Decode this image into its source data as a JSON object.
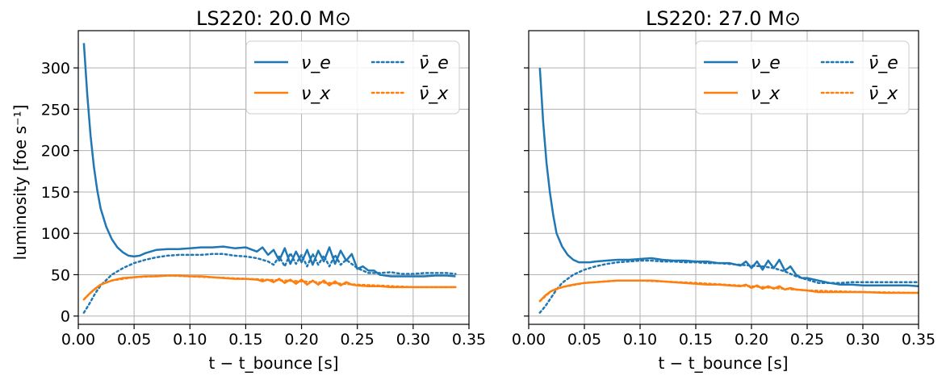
{
  "chart_data": [
    {
      "type": "line",
      "title": "LS220: 20.0 M⊙",
      "xlabel": "t − t_bounce [s]",
      "ylabel": "luminosity [foe s⁻¹]",
      "xlim": [
        0.0,
        0.35
      ],
      "ylim": [
        -10,
        345
      ],
      "xticks": [
        "0.00",
        "0.05",
        "0.10",
        "0.15",
        "0.20",
        "0.25",
        "0.30",
        "0.35"
      ],
      "yticks": [
        "0",
        "50",
        "100",
        "150",
        "200",
        "250",
        "300"
      ],
      "grid": true,
      "legend_position": "upper-right",
      "series": [
        {
          "name": "ν_e",
          "color": "#1f77b4",
          "style": "solid",
          "x": [
            0.005,
            0.008,
            0.011,
            0.014,
            0.017,
            0.02,
            0.025,
            0.03,
            0.035,
            0.04,
            0.045,
            0.05,
            0.055,
            0.06,
            0.07,
            0.08,
            0.09,
            0.1,
            0.11,
            0.12,
            0.13,
            0.14,
            0.15,
            0.16,
            0.165,
            0.17,
            0.175,
            0.18,
            0.185,
            0.19,
            0.195,
            0.2,
            0.205,
            0.21,
            0.215,
            0.22,
            0.225,
            0.23,
            0.235,
            0.24,
            0.245,
            0.25,
            0.255,
            0.26,
            0.265,
            0.27,
            0.28,
            0.29,
            0.3,
            0.31,
            0.32,
            0.33,
            0.338
          ],
          "y": [
            330,
            268,
            218,
            180,
            152,
            130,
            108,
            93,
            83,
            77,
            73,
            72,
            73,
            76,
            80,
            81,
            81,
            82,
            83,
            83,
            84,
            82,
            83,
            78,
            83,
            74,
            80,
            67,
            82,
            63,
            78,
            65,
            80,
            62,
            79,
            66,
            83,
            63,
            79,
            67,
            75,
            57,
            60,
            55,
            55,
            50,
            48,
            48,
            48,
            48,
            49,
            49,
            48
          ]
        },
        {
          "name": "ν̄_e",
          "color": "#1f77b4",
          "style": "dotted",
          "x": [
            0.005,
            0.01,
            0.015,
            0.02,
            0.03,
            0.04,
            0.05,
            0.06,
            0.07,
            0.08,
            0.09,
            0.1,
            0.11,
            0.12,
            0.13,
            0.14,
            0.15,
            0.16,
            0.17,
            0.175,
            0.18,
            0.185,
            0.19,
            0.195,
            0.2,
            0.205,
            0.21,
            0.215,
            0.22,
            0.225,
            0.23,
            0.235,
            0.24,
            0.25,
            0.26,
            0.27,
            0.28,
            0.29,
            0.3,
            0.31,
            0.32,
            0.33,
            0.338
          ],
          "y": [
            4,
            15,
            27,
            37,
            50,
            58,
            64,
            68,
            71,
            73,
            74,
            74,
            74,
            75,
            75,
            73,
            72,
            70,
            66,
            62,
            72,
            60,
            76,
            63,
            74,
            60,
            75,
            62,
            73,
            60,
            74,
            62,
            68,
            58,
            52,
            52,
            53,
            51,
            51,
            52,
            52,
            52,
            51
          ]
        },
        {
          "name": "ν_x",
          "color": "#ff7f0e",
          "style": "solid",
          "x": [
            0.005,
            0.01,
            0.015,
            0.02,
            0.03,
            0.04,
            0.05,
            0.06,
            0.07,
            0.08,
            0.09,
            0.1,
            0.11,
            0.12,
            0.13,
            0.14,
            0.15,
            0.16,
            0.165,
            0.17,
            0.175,
            0.18,
            0.185,
            0.19,
            0.195,
            0.2,
            0.205,
            0.21,
            0.215,
            0.22,
            0.225,
            0.23,
            0.235,
            0.24,
            0.245,
            0.25,
            0.26,
            0.27,
            0.28,
            0.29,
            0.3,
            0.31,
            0.32,
            0.33,
            0.338
          ],
          "y": [
            20,
            27,
            33,
            38,
            43,
            46,
            47,
            48,
            48,
            49,
            49,
            48,
            48,
            47,
            46,
            45,
            45,
            44,
            42,
            44,
            41,
            45,
            40,
            44,
            39,
            44,
            38,
            43,
            38,
            43,
            37,
            42,
            37,
            41,
            38,
            37,
            36,
            36,
            35,
            35,
            35,
            35,
            35,
            35,
            35
          ]
        },
        {
          "name": "ν̄_x",
          "color": "#ff7f0e",
          "style": "dotted",
          "x": [
            0.005,
            0.01,
            0.02,
            0.03,
            0.05,
            0.08,
            0.1,
            0.15,
            0.2,
            0.25,
            0.3,
            0.338
          ],
          "y": [
            20,
            27,
            38,
            43,
            47,
            49,
            48,
            45,
            42,
            38,
            35,
            35
          ]
        }
      ]
    },
    {
      "type": "line",
      "title": "LS220: 27.0 M⊙",
      "xlabel": "t − t_bounce [s]",
      "ylabel": "",
      "xlim": [
        0.0,
        0.35
      ],
      "ylim": [
        -10,
        345
      ],
      "xticks": [
        "0.00",
        "0.05",
        "0.10",
        "0.15",
        "0.20",
        "0.25",
        "0.30",
        "0.35"
      ],
      "yticks": [],
      "grid": true,
      "legend_position": "upper-right",
      "series": [
        {
          "name": "ν_e",
          "color": "#1f77b4",
          "style": "solid",
          "x": [
            0.01,
            0.013,
            0.016,
            0.019,
            0.022,
            0.025,
            0.03,
            0.035,
            0.04,
            0.045,
            0.05,
            0.055,
            0.06,
            0.07,
            0.08,
            0.09,
            0.1,
            0.11,
            0.12,
            0.13,
            0.14,
            0.15,
            0.16,
            0.17,
            0.18,
            0.19,
            0.195,
            0.2,
            0.205,
            0.21,
            0.215,
            0.22,
            0.225,
            0.23,
            0.235,
            0.24,
            0.245,
            0.25,
            0.26,
            0.27,
            0.28,
            0.29,
            0.3,
            0.31,
            0.32,
            0.33,
            0.34,
            0.35
          ],
          "y": [
            300,
            235,
            185,
            150,
            122,
            100,
            84,
            74,
            68,
            65,
            65,
            65,
            66,
            67,
            68,
            68,
            69,
            70,
            68,
            67,
            67,
            66,
            66,
            64,
            64,
            61,
            66,
            58,
            66,
            56,
            67,
            58,
            68,
            55,
            60,
            50,
            46,
            46,
            43,
            40,
            38,
            38,
            37,
            37,
            37,
            37,
            37,
            36
          ]
        },
        {
          "name": "ν̄_e",
          "color": "#1f77b4",
          "style": "dotted",
          "x": [
            0.01,
            0.015,
            0.02,
            0.025,
            0.03,
            0.04,
            0.05,
            0.06,
            0.07,
            0.08,
            0.09,
            0.1,
            0.11,
            0.12,
            0.13,
            0.14,
            0.15,
            0.16,
            0.17,
            0.18,
            0.19,
            0.2,
            0.21,
            0.22,
            0.23,
            0.24,
            0.25,
            0.26,
            0.27,
            0.28,
            0.29,
            0.3,
            0.32,
            0.34,
            0.35
          ],
          "y": [
            4,
            12,
            22,
            32,
            40,
            50,
            56,
            60,
            63,
            65,
            66,
            67,
            67,
            66,
            66,
            65,
            65,
            64,
            64,
            63,
            62,
            61,
            60,
            58,
            54,
            48,
            44,
            40,
            40,
            40,
            41,
            41,
            41,
            41,
            41
          ]
        },
        {
          "name": "ν_x",
          "color": "#ff7f0e",
          "style": "solid",
          "x": [
            0.01,
            0.015,
            0.02,
            0.025,
            0.03,
            0.04,
            0.05,
            0.06,
            0.07,
            0.08,
            0.09,
            0.1,
            0.11,
            0.12,
            0.13,
            0.14,
            0.15,
            0.16,
            0.17,
            0.18,
            0.19,
            0.195,
            0.2,
            0.205,
            0.21,
            0.215,
            0.22,
            0.225,
            0.23,
            0.235,
            0.24,
            0.25,
            0.26,
            0.27,
            0.28,
            0.29,
            0.3,
            0.32,
            0.34,
            0.35
          ],
          "y": [
            18,
            25,
            30,
            33,
            35,
            38,
            40,
            41,
            42,
            43,
            43,
            43,
            43,
            42,
            41,
            40,
            39,
            38,
            38,
            37,
            36,
            38,
            34,
            37,
            33,
            36,
            33,
            36,
            32,
            34,
            32,
            31,
            29,
            29,
            29,
            29,
            29,
            28,
            28,
            28
          ]
        },
        {
          "name": "ν̄_x",
          "color": "#ff7f0e",
          "style": "dotted",
          "x": [
            0.01,
            0.02,
            0.03,
            0.05,
            0.08,
            0.1,
            0.15,
            0.2,
            0.25,
            0.3,
            0.35
          ],
          "y": [
            18,
            30,
            35,
            40,
            43,
            43,
            40,
            36,
            31,
            29,
            28
          ]
        }
      ]
    }
  ]
}
